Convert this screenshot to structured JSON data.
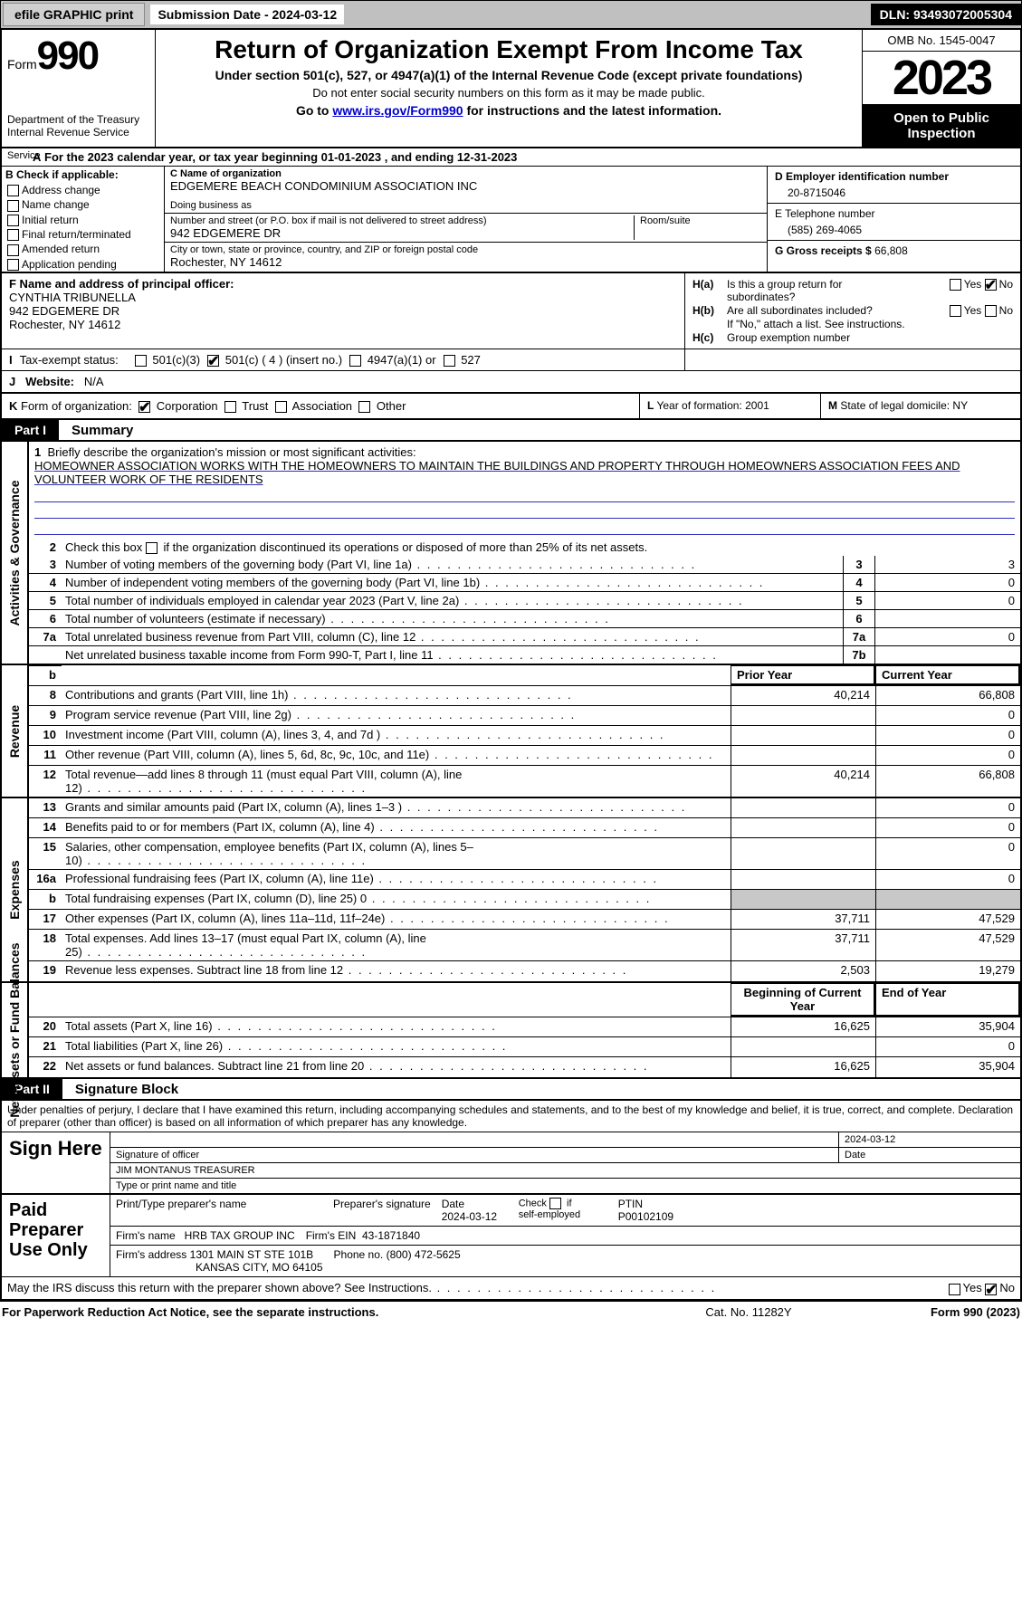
{
  "topbar": {
    "efile": "efile GRAPHIC print",
    "subdate_label": "Submission Date - ",
    "subdate": "2024-03-12",
    "dln_label": "DLN: ",
    "dln": "93493072005304"
  },
  "header": {
    "form_word": "Form",
    "form_num": "990",
    "dept1": "Department of the Treasury",
    "dept2": "Internal Revenue Service",
    "title": "Return of Organization Exempt From Income Tax",
    "subtitle1": "Under section 501(c), 527, or 4947(a)(1) of the Internal Revenue Code (except private foundations)",
    "subtitle2": "Do not enter social security numbers on this form as it may be made public.",
    "goto_pre": "Go to ",
    "goto_link": "www.irs.gov/Form990",
    "goto_post": " for instructions and the latest information.",
    "omb": "OMB No. 1545-0047",
    "year": "2023",
    "open": "Open to Public Inspection"
  },
  "lineA": {
    "prefix_a": "A",
    "text": " For the 2023 calendar year, or tax year beginning 01-01-2023   , and ending 12-31-2023",
    "service": "Service"
  },
  "B": {
    "header": "B Check if applicable:",
    "items": [
      "Address change",
      "Name change",
      "Initial return",
      "Final return/terminated",
      "Amended return",
      "Application pending"
    ]
  },
  "C": {
    "label_name": "C Name of organization",
    "org": "EDGEMERE BEACH CONDOMINIUM ASSOCIATION INC",
    "dba_label": "Doing business as",
    "dba": "",
    "addr_label": "Number and street (or P.O. box if mail is not delivered to street address)",
    "room_label": "Room/suite",
    "addr": "942 EDGEMERE DR",
    "city_label": "City or town, state or province, country, and ZIP or foreign postal code",
    "city": "Rochester, NY  14612"
  },
  "D": {
    "ein_label": "D Employer identification number",
    "ein": "20-8715046",
    "tel_label": "E Telephone number",
    "tel": "(585) 269-4065",
    "gross_label": "G Gross receipts $ ",
    "gross": "66,808"
  },
  "F": {
    "label": "F  Name and address of principal officer:",
    "name": "CYNTHIA TRIBUNELLA",
    "addr1": "942 EDGEMERE DR",
    "addr2": "Rochester, NY  14612"
  },
  "H": {
    "a_label": "H(a)",
    "a_text1": "Is this a group return for",
    "a_text2": "subordinates?",
    "b_label": "H(b)",
    "b_text1": "Are all subordinates included?",
    "b_note": "If \"No,\" attach a list. See instructions.",
    "c_label": "H(c)",
    "c_text": "Group exemption number",
    "yes": "Yes",
    "no": "No"
  },
  "I": {
    "label": "I",
    "text": "Tax-exempt status:",
    "o1": "501(c)(3)",
    "o2": "501(c) ( 4 ) (insert no.)",
    "o3": "4947(a)(1) or",
    "o4": "527"
  },
  "J": {
    "label": "J",
    "text": "Website:",
    "val": "N/A"
  },
  "K": {
    "label": "K",
    "text": "Form of organization:",
    "o1": "Corporation",
    "o2": "Trust",
    "o3": "Association",
    "o4": "Other",
    "L_label": "L",
    "L_text": "Year of formation: ",
    "L_val": "2001",
    "M_label": "M",
    "M_text": "State of legal domicile: ",
    "M_val": "NY"
  },
  "partI": {
    "tag": "Part I",
    "title": "Summary",
    "side_gov": "Activities & Governance",
    "side_rev": "Revenue",
    "side_exp": "Expenses",
    "side_net": "Net Assets or Fund Balances",
    "l1_label": "Briefly describe the organization's mission or most significant activities:",
    "l1_text": "HOMEOWNER ASSOCIATION WORKS WITH THE HOMEOWNERS TO MAINTAIN THE BUILDINGS AND PROPERTY THROUGH HOMEOWNERS ASSOCIATION FEES AND VOLUNTEER WORK OF THE RESIDENTS",
    "l2": "Check this box ▢ if the organization discontinued its operations or disposed of more than 25% of its net assets.",
    "rows_gov": [
      {
        "n": "3",
        "t": "Number of voting members of the governing body (Part VI, line 1a)",
        "box": "3",
        "v": "3"
      },
      {
        "n": "4",
        "t": "Number of independent voting members of the governing body (Part VI, line 1b)",
        "box": "4",
        "v": "0"
      },
      {
        "n": "5",
        "t": "Total number of individuals employed in calendar year 2023 (Part V, line 2a)",
        "box": "5",
        "v": "0"
      },
      {
        "n": "6",
        "t": "Total number of volunteers (estimate if necessary)",
        "box": "6",
        "v": ""
      },
      {
        "n": "7a",
        "t": "Total unrelated business revenue from Part VIII, column (C), line 12",
        "box": "7a",
        "v": "0"
      },
      {
        "n": "",
        "t": "Net unrelated business taxable income from Form 990-T, Part I, line 11",
        "box": "7b",
        "v": ""
      }
    ],
    "col_prior": "Prior Year",
    "col_curr": "Current Year",
    "rows_rev": [
      {
        "n": "8",
        "t": "Contributions and grants (Part VIII, line 1h)",
        "p": "40,214",
        "c": "66,808"
      },
      {
        "n": "9",
        "t": "Program service revenue (Part VIII, line 2g)",
        "p": "",
        "c": "0"
      },
      {
        "n": "10",
        "t": "Investment income (Part VIII, column (A), lines 3, 4, and 7d )",
        "p": "",
        "c": "0"
      },
      {
        "n": "11",
        "t": "Other revenue (Part VIII, column (A), lines 5, 6d, 8c, 9c, 10c, and 11e)",
        "p": "",
        "c": "0"
      },
      {
        "n": "12",
        "t": "Total revenue—add lines 8 through 11 (must equal Part VIII, column (A), line 12)",
        "p": "40,214",
        "c": "66,808"
      }
    ],
    "rows_exp": [
      {
        "n": "13",
        "t": "Grants and similar amounts paid (Part IX, column (A), lines 1–3 )",
        "p": "",
        "c": "0"
      },
      {
        "n": "14",
        "t": "Benefits paid to or for members (Part IX, column (A), line 4)",
        "p": "",
        "c": "0"
      },
      {
        "n": "15",
        "t": "Salaries, other compensation, employee benefits (Part IX, column (A), lines 5–10)",
        "p": "",
        "c": "0"
      },
      {
        "n": "16a",
        "t": "Professional fundraising fees (Part IX, column (A), line 11e)",
        "p": "",
        "c": "0"
      },
      {
        "n": "b",
        "t": "Total fundraising expenses (Part IX, column (D), line 25) 0",
        "p": "shade",
        "c": "shade"
      },
      {
        "n": "17",
        "t": "Other expenses (Part IX, column (A), lines 11a–11d, 11f–24e)",
        "p": "37,711",
        "c": "47,529"
      },
      {
        "n": "18",
        "t": "Total expenses. Add lines 13–17 (must equal Part IX, column (A), line 25)",
        "p": "37,711",
        "c": "47,529"
      },
      {
        "n": "19",
        "t": "Revenue less expenses. Subtract line 18 from line 12",
        "p": "2,503",
        "c": "19,279"
      }
    ],
    "col_beg": "Beginning of Current Year",
    "col_end": "End of Year",
    "rows_net": [
      {
        "n": "20",
        "t": "Total assets (Part X, line 16)",
        "p": "16,625",
        "c": "35,904"
      },
      {
        "n": "21",
        "t": "Total liabilities (Part X, line 26)",
        "p": "",
        "c": "0"
      },
      {
        "n": "22",
        "t": "Net assets or fund balances. Subtract line 21 from line 20",
        "p": "16,625",
        "c": "35,904"
      }
    ]
  },
  "partII": {
    "tag": "Part II",
    "title": "Signature Block",
    "decl": "Under penalties of perjury, I declare that I have examined this return, including accompanying schedules and statements, and to the best of my knowledge and belief, it is true, correct, and complete. Declaration of preparer (other than officer) is based on all information of which preparer has any knowledge.",
    "sign_here": "Sign Here",
    "sig_officer_lbl": "Signature of officer",
    "sig_date": "2024-03-12",
    "date_lbl": "Date",
    "officer": "JIM MONTANUS  TREASURER",
    "officer_lbl": "Type or print name and title",
    "paid_label": "Paid Preparer Use Only",
    "prep_name_lbl": "Print/Type preparer's name",
    "prep_sig_lbl": "Preparer's signature",
    "prep_date": "2024-03-12",
    "check_if": "Check ▢ if self-employed",
    "ptin_lbl": "PTIN",
    "ptin": "P00102109",
    "firm_name_lbl": "Firm's name",
    "firm_name": "HRB TAX GROUP INC",
    "firm_ein_lbl": "Firm's EIN",
    "firm_ein": "43-1871840",
    "firm_addr_lbl": "Firm's address",
    "firm_addr1": "1301 MAIN ST STE 101B",
    "firm_addr2": "KANSAS CITY, MO  64105",
    "phone_lbl": "Phone no.",
    "phone": "(800) 472-5625",
    "discuss": "May the IRS discuss this return with the preparer shown above? See Instructions."
  },
  "footer": {
    "left": "For Paperwork Reduction Act Notice, see the separate instructions.",
    "mid": "Cat. No. 11282Y",
    "right": "Form 990 (2023)"
  },
  "colors": {
    "topbar_bg": "#c0c0c0",
    "black": "#000000",
    "link": "#0000cc",
    "shade": "#c8c8c8",
    "ruled": "#3030c0"
  }
}
